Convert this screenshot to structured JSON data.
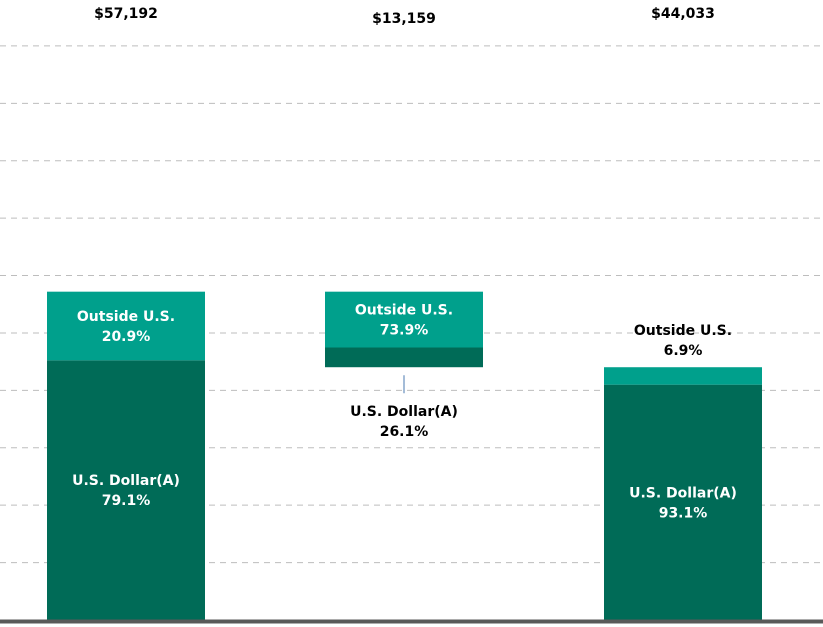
{
  "chart_data": {
    "type": "waterfall",
    "ylim": [
      0,
      108000
    ],
    "yticks": [
      10000,
      20000,
      30000,
      40000,
      50000,
      60000,
      70000,
      80000,
      90000,
      100000
    ],
    "grid": true,
    "bars": [
      {
        "measure": "absolute",
        "total": 57192,
        "total_label": "$57,192",
        "segments": [
          {
            "name": "U.S. Dollar(A)",
            "value": 79.1,
            "value_label": "79.1%",
            "color": "#006b57"
          },
          {
            "name": "Outside U.S.",
            "value": 20.9,
            "value_label": "20.9%",
            "color": "#00a08c"
          }
        ]
      },
      {
        "measure": "decrease",
        "total": 13159,
        "total_label": "$13,159",
        "segments": [
          {
            "name": "U.S. Dollar(A)",
            "value": 26.1,
            "value_label": "26.1%",
            "color": "#006b57"
          },
          {
            "name": "Outside U.S.",
            "value": 73.9,
            "value_label": "73.9%",
            "color": "#00a08c"
          }
        ]
      },
      {
        "measure": "total",
        "total": 44033,
        "total_label": "$44,033",
        "segments": [
          {
            "name": "U.S. Dollar(A)",
            "value": 93.1,
            "value_label": "93.1%",
            "color": "#006b57"
          },
          {
            "name": "Outside U.S.",
            "value": 6.9,
            "value_label": "6.9%",
            "color": "#00a08c"
          }
        ]
      }
    ]
  }
}
